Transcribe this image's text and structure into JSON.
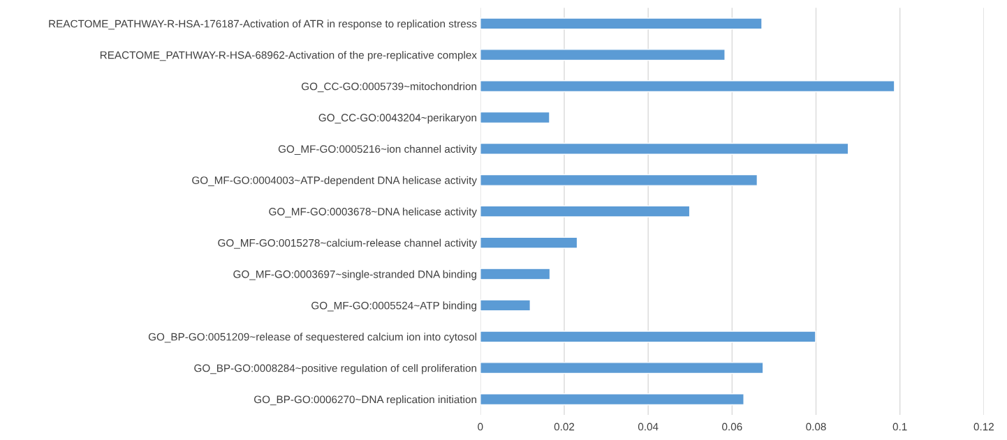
{
  "chart_data": {
    "type": "bar",
    "orientation": "horizontal",
    "categories": [
      "REACTOME_PATHWAY-R-HSA-176187-Activation of ATR in response to replication stress",
      "REACTOME_PATHWAY-R-HSA-68962-Activation of the pre-replicative complex",
      "GO_CC-GO:0005739~mitochondrion",
      "GO_CC-GO:0043204~perikaryon",
      "GO_MF-GO:0005216~ion channel activity",
      "GO_MF-GO:0004003~ATP-dependent DNA helicase activity",
      "GO_MF-GO:0003678~DNA helicase activity",
      "GO_MF-GO:0015278~calcium-release channel activity",
      "GO_MF-GO:0003697~single-stranded DNA binding",
      "GO_MF-GO:0005524~ATP binding",
      "GO_BP-GO:0051209~release of sequestered calcium ion into cytosol",
      "GO_BP-GO:0008284~positive regulation of cell proliferation",
      "GO_BP-GO:0006270~DNA replication initiation"
    ],
    "values": [
      0.0671,
      0.0583,
      0.0987,
      0.0165,
      0.0877,
      0.066,
      0.0499,
      0.0231,
      0.0166,
      0.0119,
      0.0799,
      0.0674,
      0.0628
    ],
    "color": "#5b9bd5",
    "xlim": [
      0,
      0.12
    ],
    "xticks": [
      0,
      0.02,
      0.04,
      0.06,
      0.08,
      {
        "value": 0.1,
        "label": "0.1"
      },
      0.12
    ],
    "grid": "x"
  }
}
